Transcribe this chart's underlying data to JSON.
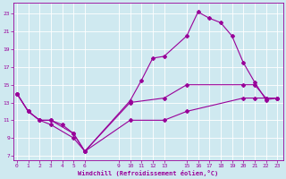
{
  "xlabel": "Windchill (Refroidissement éolien,°C)",
  "ylabel": "",
  "background_color": "#cfe9f0",
  "line_color": "#990099",
  "grid_color": "#ffffff",
  "xticks": [
    0,
    1,
    2,
    3,
    4,
    5,
    6,
    9,
    10,
    11,
    12,
    13,
    15,
    16,
    17,
    18,
    19,
    20,
    21,
    22,
    23
  ],
  "yticks": [
    7,
    9,
    11,
    13,
    15,
    17,
    19,
    21,
    23
  ],
  "xlim": [
    -0.3,
    23.5
  ],
  "ylim": [
    6.5,
    24.2
  ],
  "series": [
    {
      "x": [
        0,
        1,
        2,
        3,
        4,
        5,
        6,
        10,
        11,
        12,
        13,
        15,
        16,
        17,
        18,
        19,
        20,
        21,
        22,
        23
      ],
      "y": [
        14,
        12,
        11,
        11,
        10.5,
        9.5,
        7.5,
        13.2,
        15.5,
        18,
        18.2,
        20.5,
        23.2,
        22.5,
        22,
        20.5,
        17.5,
        15.3,
        13.3,
        13.5
      ]
    },
    {
      "x": [
        0,
        1,
        2,
        3,
        5,
        6,
        10,
        13,
        15,
        20,
        21,
        22,
        23
      ],
      "y": [
        14,
        12,
        11,
        10.5,
        9.0,
        7.5,
        13,
        13.5,
        15,
        15,
        15,
        13.5,
        13.5
      ]
    },
    {
      "x": [
        0,
        1,
        2,
        3,
        5,
        6,
        10,
        13,
        15,
        20,
        21,
        22,
        23
      ],
      "y": [
        14,
        12,
        11,
        11,
        9.5,
        7.5,
        11,
        11,
        12,
        13.5,
        13.5,
        13.5,
        13.5
      ]
    }
  ]
}
